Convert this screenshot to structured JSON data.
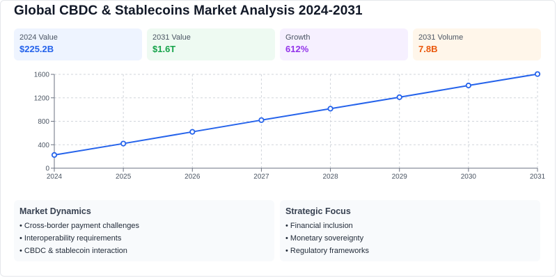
{
  "title": "Global CBDC & Stablecoins Market Analysis 2024-2031",
  "stats": [
    {
      "label": "2024 Value",
      "value": "$225.2B",
      "color": "#2563eb"
    },
    {
      "label": "2031 Value",
      "value": "$1.6T",
      "color": "#16a34a"
    },
    {
      "label": "Growth",
      "value": "612%",
      "color": "#9333ea"
    },
    {
      "label": "2031 Volume",
      "value": "7.8B",
      "color": "#ea580c"
    }
  ],
  "chart_data": {
    "type": "line",
    "x": [
      "2024",
      "2025",
      "2026",
      "2027",
      "2028",
      "2029",
      "2030",
      "2031"
    ],
    "series": [
      {
        "values": [
          225.2,
          420,
          620,
          820,
          1015,
          1210,
          1410,
          1605
        ]
      }
    ],
    "ylim": [
      0,
      1600
    ],
    "yticks": [
      "0",
      "400",
      "800",
      "1200",
      "1600"
    ],
    "grid": true,
    "line_color": "#2563eb"
  },
  "panels": {
    "dynamics": {
      "title": "Market Dynamics",
      "items": [
        "Cross-border payment challenges",
        "Interoperability requirements",
        "CBDC & stablecoin interaction"
      ]
    },
    "focus": {
      "title": "Strategic Focus",
      "items": [
        "Financial inclusion",
        "Monetary sovereignty",
        "Regulatory frameworks"
      ]
    }
  }
}
